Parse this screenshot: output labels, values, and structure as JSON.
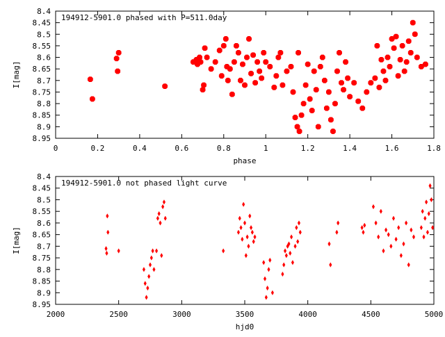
{
  "colors": {
    "marker": "#ff0000",
    "axis": "#000000",
    "background": "#ffffff"
  },
  "chart_data": [
    {
      "type": "scatter",
      "title": "194912-5901.0 phased with P=511.0day",
      "xlabel": "phase",
      "ylabel": "I[mag]",
      "xlim": [
        0,
        1.8
      ],
      "ylim": [
        8.4,
        8.95
      ],
      "y_inverted": true,
      "xticks": [
        0,
        0.2,
        0.4,
        0.6,
        0.8,
        1,
        1.2,
        1.4,
        1.6,
        1.8
      ],
      "xtick_labels": [
        "0",
        "0.2",
        "0.4",
        "0.6",
        "0.8",
        "1",
        "1.2",
        "1.4",
        "1.6",
        "1.8"
      ],
      "yticks": [
        8.4,
        8.45,
        8.5,
        8.55,
        8.6,
        8.65,
        8.7,
        8.75,
        8.8,
        8.85,
        8.9,
        8.95
      ],
      "ytick_labels": [
        "8.4",
        "8.45",
        "8.5",
        "8.55",
        "8.6",
        "8.65",
        "8.7",
        "8.75",
        "8.8",
        "8.85",
        "8.9",
        "8.95"
      ],
      "marker": "star",
      "series": [
        {
          "x": [
            0.165,
            0.175,
            0.29,
            0.3,
            0.295,
            0.52,
            0.655,
            0.67,
            0.675,
            0.685,
            0.69,
            0.7,
            0.705,
            0.71,
            0.72,
            0.74,
            0.76,
            0.78,
            0.79,
            0.8,
            0.81,
            0.815,
            0.82,
            0.83,
            0.84,
            0.85,
            0.86,
            0.87,
            0.88,
            0.89,
            0.9,
            0.91,
            0.92,
            0.93,
            0.94,
            0.95,
            0.96,
            0.97,
            0.98,
            0.99,
            1.0,
            1.02,
            1.04,
            1.05,
            1.06,
            1.07,
            1.08,
            1.1,
            1.12,
            1.13,
            1.14,
            1.15,
            1.155,
            1.16,
            1.17,
            1.18,
            1.19,
            1.2,
            1.21,
            1.22,
            1.23,
            1.24,
            1.25,
            1.26,
            1.27,
            1.28,
            1.29,
            1.3,
            1.31,
            1.32,
            1.33,
            1.34,
            1.35,
            1.36,
            1.37,
            1.38,
            1.39,
            1.4,
            1.42,
            1.44,
            1.46,
            1.48,
            1.5,
            1.52,
            1.53,
            1.54,
            1.55,
            1.56,
            1.57,
            1.58,
            1.59,
            1.6,
            1.61,
            1.62,
            1.63,
            1.64,
            1.65,
            1.66,
            1.67,
            1.68,
            1.69,
            1.7,
            1.71,
            1.72,
            1.74,
            1.76
          ],
          "y": [
            8.695,
            8.78,
            8.605,
            8.58,
            8.66,
            8.725,
            8.62,
            8.61,
            8.63,
            8.6,
            8.62,
            8.74,
            8.72,
            8.56,
            8.6,
            8.65,
            8.62,
            8.57,
            8.68,
            8.55,
            8.52,
            8.64,
            8.7,
            8.65,
            8.76,
            8.62,
            8.55,
            8.58,
            8.7,
            8.63,
            8.72,
            8.6,
            8.52,
            8.67,
            8.59,
            8.71,
            8.62,
            8.66,
            8.69,
            8.58,
            8.62,
            8.64,
            8.73,
            8.68,
            8.6,
            8.58,
            8.72,
            8.66,
            8.64,
            8.75,
            8.86,
            8.9,
            8.58,
            8.92,
            8.85,
            8.8,
            8.72,
            8.63,
            8.78,
            8.83,
            8.66,
            8.74,
            8.9,
            8.64,
            8.6,
            8.7,
            8.82,
            8.75,
            8.87,
            8.92,
            8.8,
            8.66,
            8.58,
            8.71,
            8.74,
            8.62,
            8.69,
            8.77,
            8.71,
            8.79,
            8.82,
            8.75,
            8.71,
            8.69,
            8.55,
            8.73,
            8.61,
            8.66,
            8.7,
            8.6,
            8.64,
            8.52,
            8.56,
            8.51,
            8.68,
            8.61,
            8.55,
            8.66,
            8.62,
            8.53,
            8.58,
            8.45,
            8.5,
            8.6,
            8.64,
            8.63
          ]
        }
      ]
    },
    {
      "type": "scatter",
      "title": "194912-5901.0 not phased light curve",
      "xlabel": "hjd0",
      "ylabel": "I[mag]",
      "xlim": [
        2000,
        5000
      ],
      "ylim": [
        8.4,
        8.95
      ],
      "y_inverted": true,
      "xticks": [
        2000,
        2500,
        3000,
        3500,
        4000,
        4500,
        5000
      ],
      "xtick_labels": [
        "2000",
        "2500",
        "3000",
        "3500",
        "4000",
        "4500",
        "5000"
      ],
      "yticks": [
        8.4,
        8.45,
        8.5,
        8.55,
        8.6,
        8.65,
        8.7,
        8.75,
        8.8,
        8.85,
        8.9,
        8.95
      ],
      "ytick_labels": [
        "8.4",
        "8.45",
        "8.5",
        "8.55",
        "8.6",
        "8.65",
        "8.7",
        "8.75",
        "8.8",
        "8.85",
        "8.9",
        "8.95"
      ],
      "marker": "diamond",
      "series": [
        {
          "x": [
            2400,
            2405,
            2410,
            2415,
            2500,
            2700,
            2710,
            2720,
            2730,
            2740,
            2750,
            2760,
            2770,
            2780,
            2800,
            2810,
            2820,
            2830,
            2840,
            2850,
            2860,
            2870,
            3330,
            3450,
            3460,
            3470,
            3480,
            3490,
            3500,
            3510,
            3520,
            3530,
            3540,
            3550,
            3560,
            3570,
            3580,
            3650,
            3660,
            3670,
            3680,
            3690,
            3700,
            3720,
            3800,
            3810,
            3820,
            3830,
            3840,
            3850,
            3860,
            3870,
            3880,
            3900,
            3910,
            3920,
            3930,
            3940,
            4170,
            4180,
            4230,
            4240,
            4430,
            4440,
            4450,
            4520,
            4540,
            4560,
            4580,
            4600,
            4620,
            4640,
            4660,
            4680,
            4700,
            4720,
            4740,
            4760,
            4780,
            4800,
            4820,
            4840,
            4900,
            4910,
            4920,
            4930,
            4940,
            4950,
            4960,
            4970,
            4980,
            4990
          ],
          "y": [
            8.71,
            8.73,
            8.57,
            8.64,
            8.72,
            8.8,
            8.86,
            8.92,
            8.88,
            8.83,
            8.78,
            8.75,
            8.72,
            8.8,
            8.72,
            8.58,
            8.56,
            8.6,
            8.74,
            8.53,
            8.51,
            8.58,
            8.72,
            8.64,
            8.58,
            8.62,
            8.67,
            8.52,
            8.6,
            8.74,
            8.66,
            8.7,
            8.57,
            8.62,
            8.64,
            8.68,
            8.66,
            8.77,
            8.84,
            8.92,
            8.88,
            8.8,
            8.76,
            8.9,
            8.82,
            8.78,
            8.72,
            8.74,
            8.7,
            8.69,
            8.73,
            8.66,
            8.77,
            8.7,
            8.62,
            8.68,
            8.6,
            8.64,
            8.69,
            8.78,
            8.64,
            8.6,
            8.62,
            8.64,
            8.61,
            8.53,
            8.6,
            8.66,
            8.55,
            8.72,
            8.63,
            8.65,
            8.7,
            8.58,
            8.67,
            8.62,
            8.74,
            8.69,
            8.6,
            8.78,
            8.63,
            8.66,
            8.62,
            8.55,
            8.66,
            8.58,
            8.51,
            8.64,
            8.56,
            8.44,
            8.5,
            8.62
          ]
        }
      ]
    }
  ]
}
